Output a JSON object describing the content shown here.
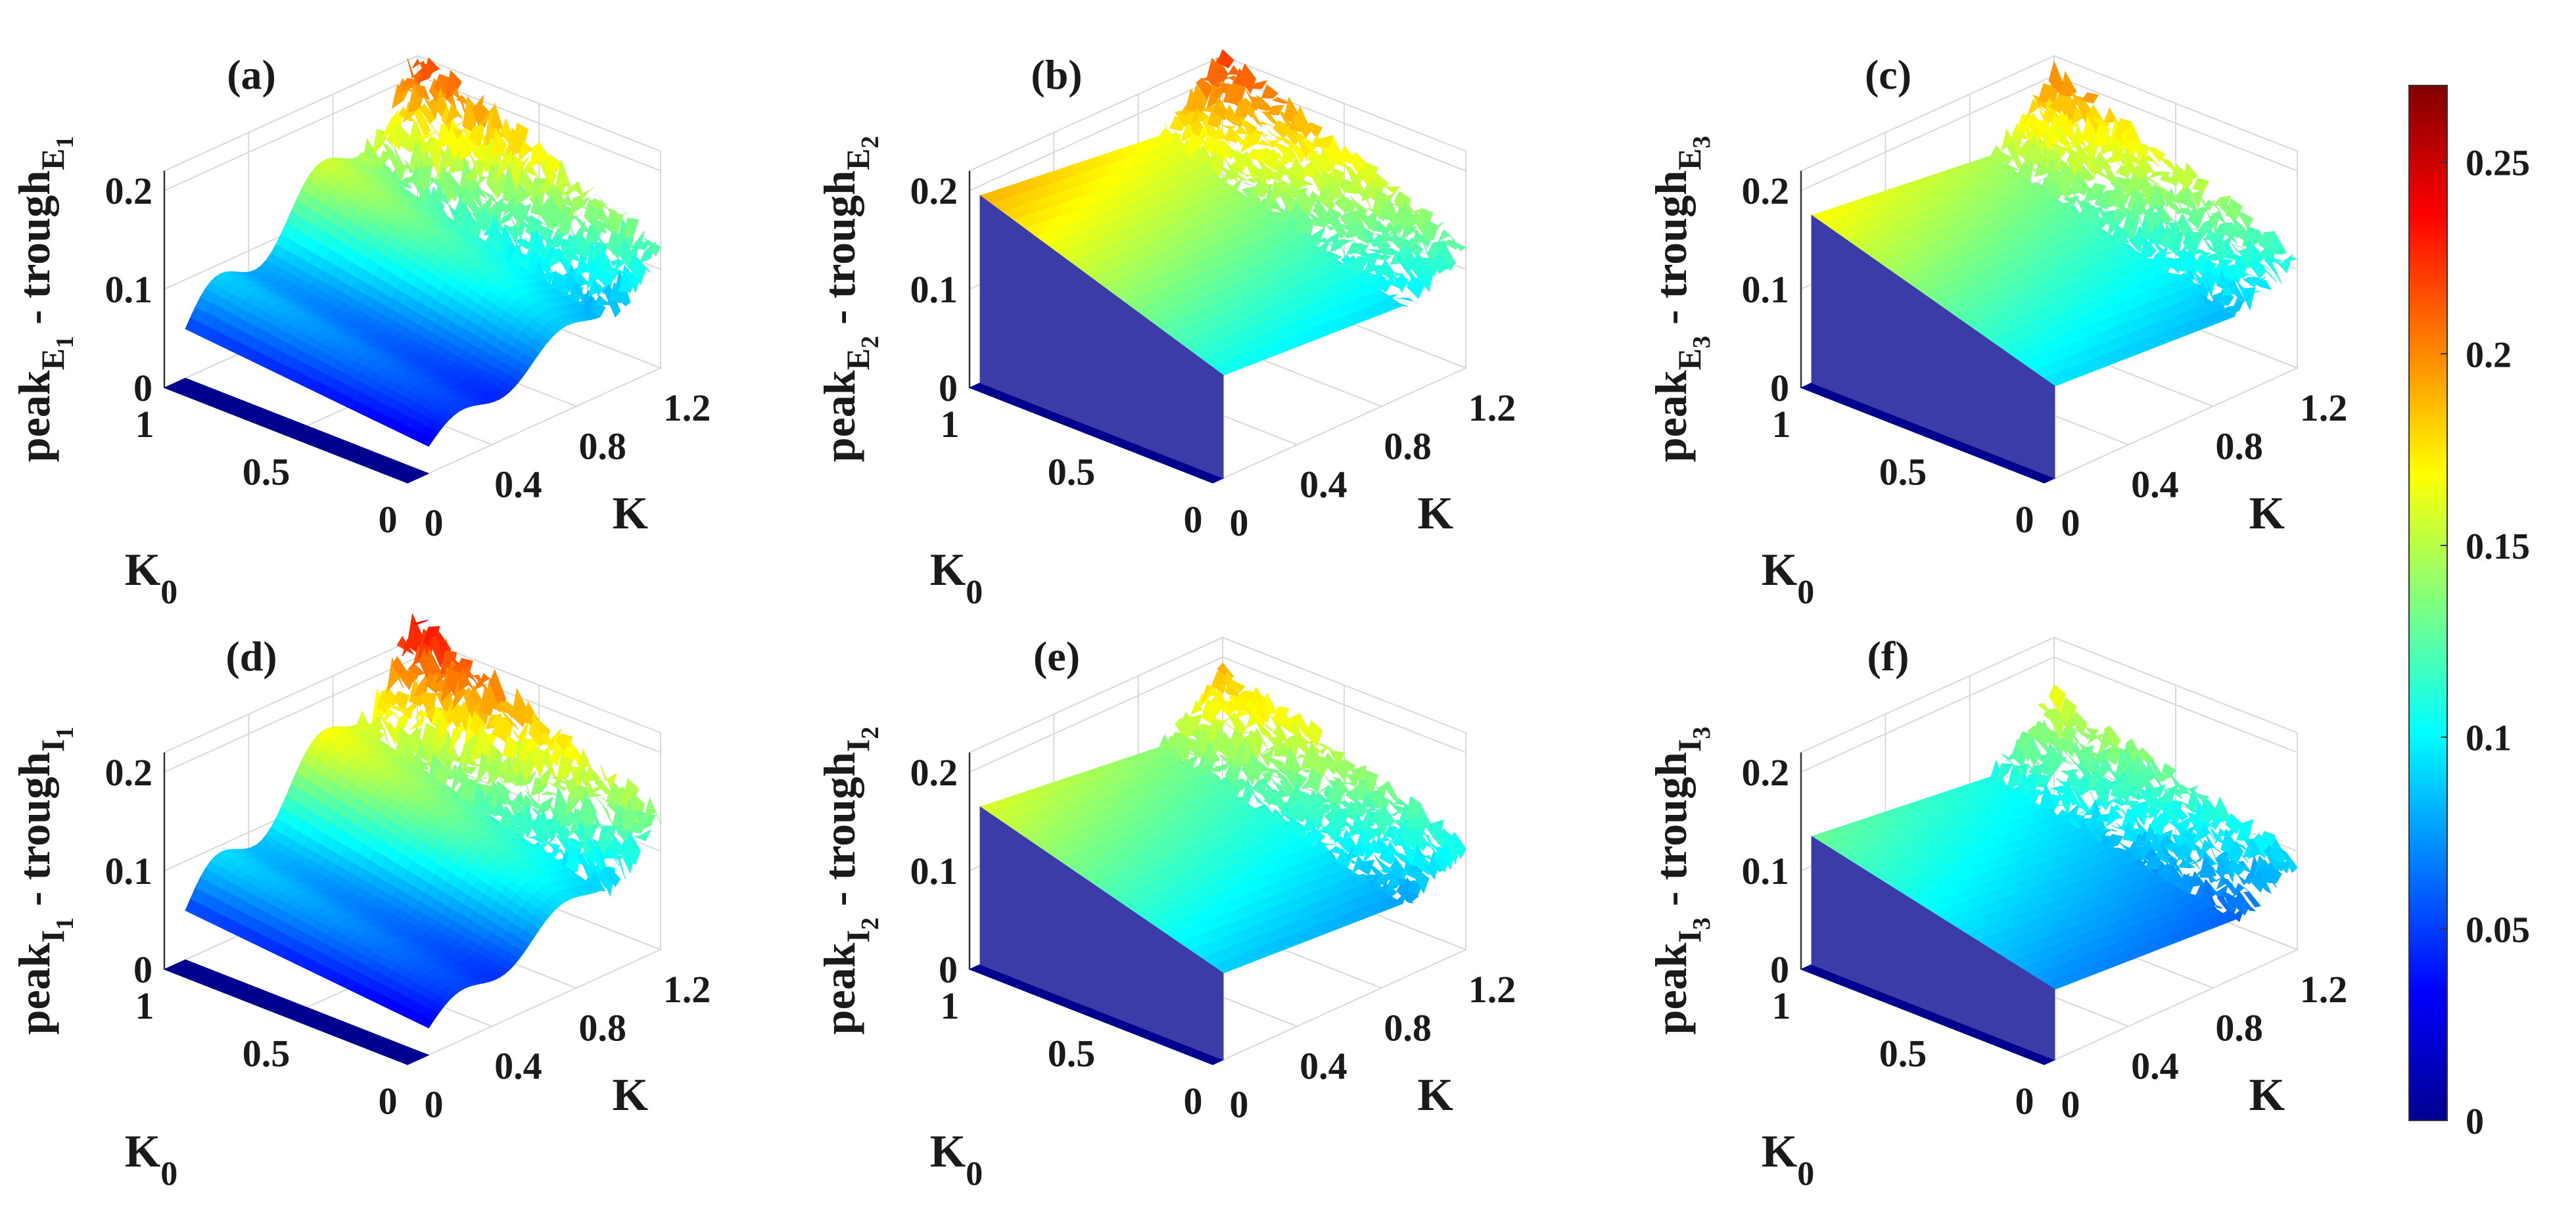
{
  "chart_data": [
    {
      "id": "a",
      "title": "(a)",
      "type": "surface3d",
      "zlabel": {
        "base": "peak",
        "sub1": "E",
        "sub2": "1",
        "mid": " - trough",
        "sub3": "E",
        "sub4": "1"
      },
      "xlabel": "K",
      "ylabel": {
        "base": "K",
        "sub": "0"
      },
      "xticks": [
        "0",
        "0.4",
        "0.8",
        "1.2"
      ],
      "yticks": [
        "1",
        "0.5",
        "0"
      ],
      "zticks": [
        "0.2",
        "0.1",
        "0"
      ],
      "zlim": [
        0,
        0.2
      ],
      "jump_K": 0.1,
      "plateau_z": 0.0,
      "ramp_start_z": 0.05,
      "ramp_end_z": 0.2,
      "noise": 0.015
    },
    {
      "id": "b",
      "title": "(b)",
      "type": "surface3d",
      "zlabel": {
        "base": "peak",
        "sub1": "E",
        "sub2": "2",
        "mid": " - trough",
        "sub3": "E",
        "sub4": "2"
      },
      "xlabel": "K",
      "ylabel": {
        "base": "K",
        "sub": "0"
      },
      "xticks": [
        "0",
        "0.4",
        "0.8",
        "1.2"
      ],
      "yticks": [
        "1",
        "0.5",
        "0"
      ],
      "zticks": [
        "0.2",
        "0.1",
        "0"
      ],
      "zlim": [
        0,
        0.2
      ],
      "jump_K": 0.05,
      "plateau_z": 0.19,
      "ramp_start_z": 0.12,
      "ramp_end_z": 0.18,
      "noise": 0.01
    },
    {
      "id": "c",
      "title": "(c)",
      "type": "surface3d",
      "zlabel": {
        "base": "peak",
        "sub1": "E",
        "sub2": "3",
        "mid": " - trough",
        "sub3": "E",
        "sub4": "3"
      },
      "xlabel": "K",
      "ylabel": {
        "base": "K",
        "sub": "0"
      },
      "xticks": [
        "0",
        "0.4",
        "0.8",
        "1.2"
      ],
      "yticks": [
        "1",
        "0.5",
        "0"
      ],
      "zticks": [
        "0.2",
        "0.1",
        "0"
      ],
      "zlim": [
        0,
        0.2
      ],
      "jump_K": 0.05,
      "plateau_z": 0.17,
      "ramp_start_z": 0.13,
      "ramp_end_z": 0.19,
      "noise": 0.012
    },
    {
      "id": "d",
      "title": "(d)",
      "type": "surface3d",
      "zlabel": {
        "base": "peak",
        "sub1": "I",
        "sub2": "1",
        "mid": " - trough",
        "sub3": "I",
        "sub4": "1"
      },
      "xlabel": "K",
      "ylabel": {
        "base": "K",
        "sub": "0"
      },
      "xticks": [
        "0",
        "0.4",
        "0.8",
        "1.2"
      ],
      "yticks": [
        "1",
        "0.5",
        "0"
      ],
      "zticks": [
        "0.2",
        "0.1",
        "0"
      ],
      "zlim": [
        0,
        0.2
      ],
      "jump_K": 0.1,
      "plateau_z": 0.0,
      "ramp_start_z": 0.05,
      "ramp_end_z": 0.22,
      "noise": 0.015
    },
    {
      "id": "e",
      "title": "(e)",
      "type": "surface3d",
      "zlabel": {
        "base": "peak",
        "sub1": "I",
        "sub2": "2",
        "mid": " - trough",
        "sub3": "I",
        "sub4": "2"
      },
      "xlabel": "K",
      "ylabel": {
        "base": "K",
        "sub": "0"
      },
      "xticks": [
        "0",
        "0.4",
        "0.8",
        "1.2"
      ],
      "yticks": [
        "1",
        "0.5",
        "0"
      ],
      "zticks": [
        "0.2",
        "0.1",
        "0"
      ],
      "zlim": [
        0,
        0.2
      ],
      "jump_K": 0.05,
      "plateau_z": 0.16,
      "ramp_start_z": 0.13,
      "ramp_end_z": 0.18,
      "noise": 0.01
    },
    {
      "id": "f",
      "title": "(f)",
      "type": "surface3d",
      "zlabel": {
        "base": "peak",
        "sub1": "I",
        "sub2": "3",
        "mid": " - trough",
        "sub3": "I",
        "sub4": "3"
      },
      "xlabel": "K",
      "ylabel": {
        "base": "K",
        "sub": "0"
      },
      "xticks": [
        "0",
        "0.4",
        "0.8",
        "1.2"
      ],
      "yticks": [
        "1",
        "0.5",
        "0"
      ],
      "zticks": [
        "0.2",
        "0.1",
        "0"
      ],
      "zlim": [
        0,
        0.2
      ],
      "jump_K": 0.05,
      "plateau_z": 0.13,
      "ramp_start_z": 0.12,
      "ramp_end_z": 0.17,
      "noise": 0.012
    }
  ],
  "colorbar": {
    "colormap": "jet",
    "range": [
      0,
      0.27
    ],
    "ticks": [
      {
        "value": 0.25,
        "label": "0.25"
      },
      {
        "value": 0.2,
        "label": "0.2"
      },
      {
        "value": 0.15,
        "label": "0.15"
      },
      {
        "value": 0.1,
        "label": "0.1"
      },
      {
        "value": 0.05,
        "label": "0.05"
      },
      {
        "value": 0,
        "label": "0"
      }
    ]
  },
  "colors": {
    "grid": "#d9d9d9",
    "axis": "#333333",
    "low": "#00008f",
    "wall": "#3c3ca8"
  }
}
